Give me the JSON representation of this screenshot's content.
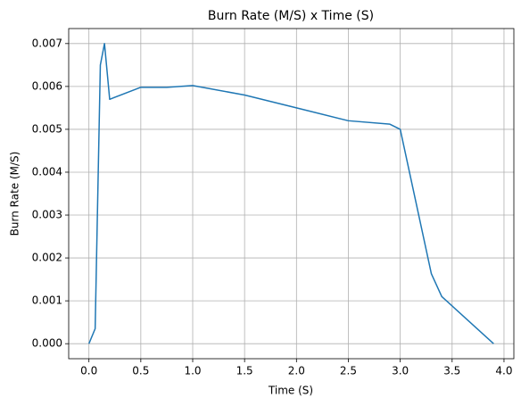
{
  "chart_data": {
    "type": "line",
    "title": "Burn Rate (M/S) x Time (S)",
    "xlabel": "Time (S)",
    "ylabel": "Burn Rate (M/S)",
    "x": [
      0,
      0.06,
      0.11,
      0.15,
      0.2,
      0.5,
      0.75,
      1.0,
      1.5,
      2.0,
      2.5,
      2.9,
      3.0,
      3.3,
      3.4,
      3.9
    ],
    "values": [
      0,
      0.00035,
      0.0065,
      0.007,
      0.0057,
      0.00598,
      0.00598,
      0.00602,
      0.0058,
      0.0055,
      0.0052,
      0.00512,
      0.005,
      0.00163,
      0.0011,
      0
    ],
    "color": "#1f77b4",
    "xlim": [
      -0.195,
      4.095
    ],
    "ylim": [
      -0.00035,
      0.00735
    ],
    "xticks": [
      {
        "value": 0,
        "label": "0.0"
      },
      0.5,
      {
        "value": 1,
        "label": "1.0"
      },
      1.5,
      {
        "value": 2,
        "label": "2.0"
      },
      2.5,
      {
        "value": 3,
        "label": "3.0"
      },
      3.5,
      {
        "value": 4,
        "label": "4.0"
      }
    ],
    "yticks": [
      {
        "value": 0,
        "label": "0.000"
      },
      {
        "value": 0.001,
        "label": "0.001"
      },
      {
        "value": 0.002,
        "label": "0.002"
      },
      {
        "value": 0.003,
        "label": "0.003"
      },
      {
        "value": 0.004,
        "label": "0.004"
      },
      {
        "value": 0.005,
        "label": "0.005"
      },
      {
        "value": 0.006,
        "label": "0.006"
      },
      {
        "value": 0.007,
        "label": "0.007"
      }
    ],
    "grid": true
  }
}
